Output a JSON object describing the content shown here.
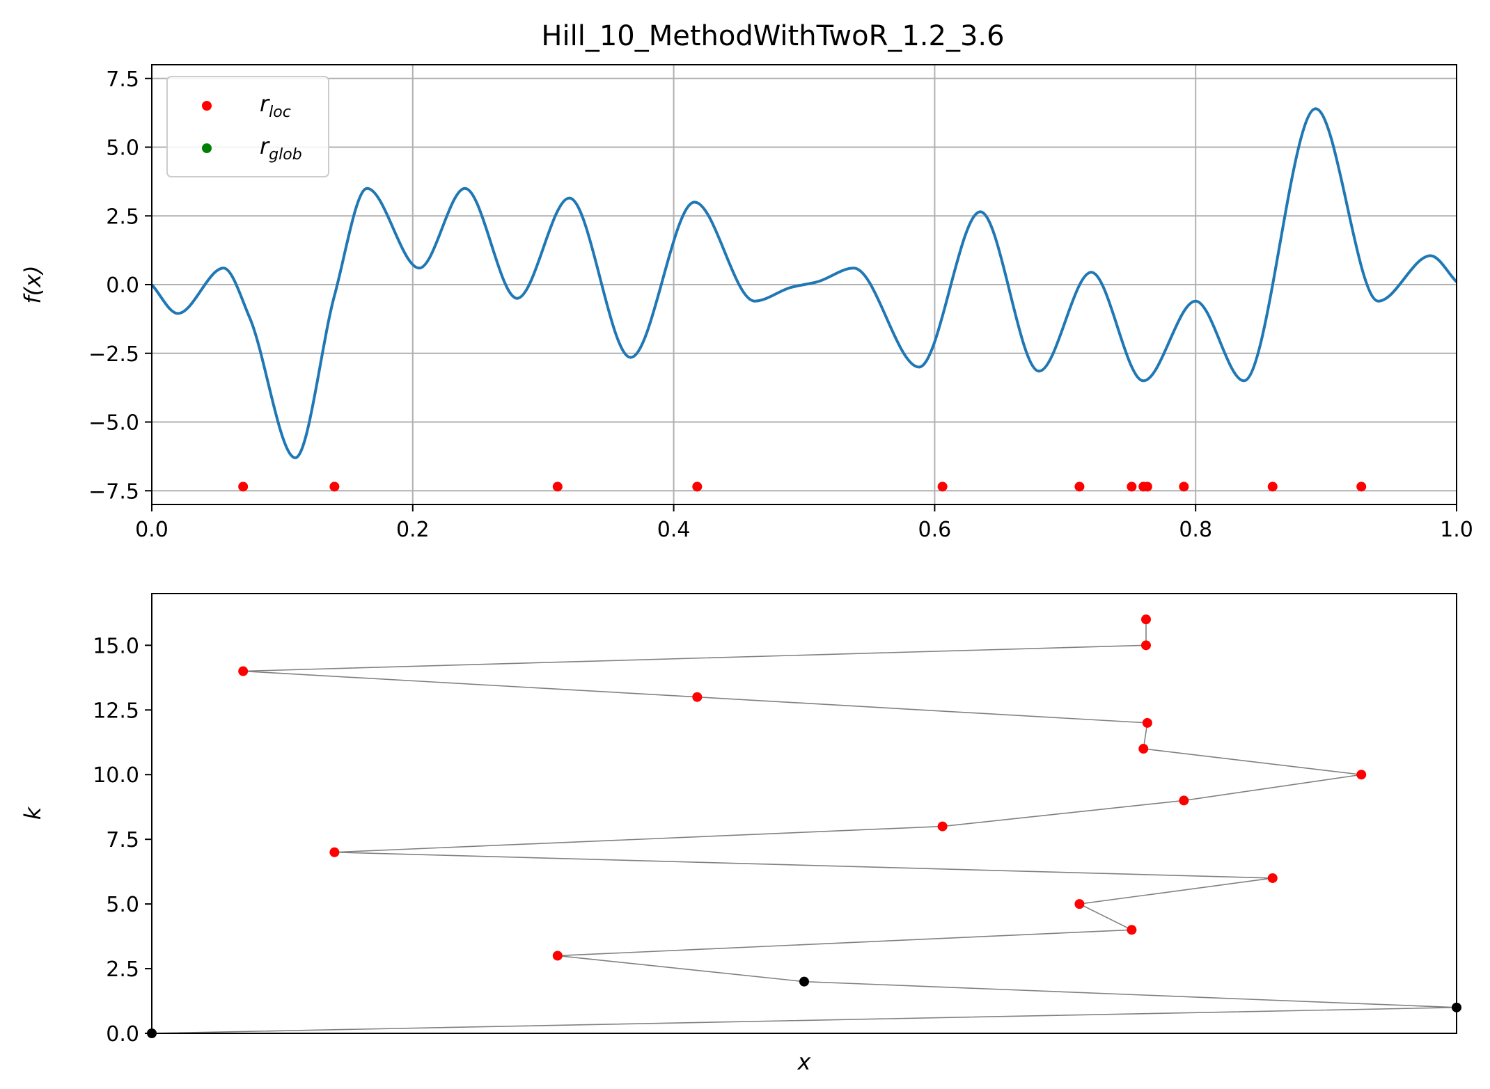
{
  "chart_data": [
    {
      "type": "line",
      "title": "Hill_10_MethodWithTwoR_1.2_3.6",
      "xlabel": "",
      "ylabel": "f(x)",
      "xlim": [
        0,
        1
      ],
      "ylim": [
        -8,
        8
      ],
      "grid": true,
      "xticks": [
        0.0,
        0.2,
        0.4,
        0.6,
        0.8,
        1.0
      ],
      "xtick_labels": [
        "0.0",
        "0.2",
        "0.4",
        "0.6",
        "0.8",
        "1.0"
      ],
      "yticks": [
        -7.5,
        -5.0,
        -2.5,
        0.0,
        2.5,
        5.0,
        7.5
      ],
      "ytick_labels": [
        "−7.5",
        "−5.0",
        "−2.5",
        "0.0",
        "2.5",
        "5.0",
        "7.5"
      ],
      "curve_color": "#1f77b4",
      "curve": {
        "x": [
          0,
          0.02,
          0.055,
          0.075,
          0.11,
          0.14,
          0.165,
          0.205,
          0.24,
          0.28,
          0.32,
          0.367,
          0.416,
          0.462,
          0.49,
          0.51,
          0.538,
          0.588,
          0.635,
          0.68,
          0.72,
          0.76,
          0.8,
          0.837,
          0.892,
          0.94,
          0.98,
          1.0
        ],
        "y": [
          0.0,
          -1.05,
          0.6,
          -1.2,
          -6.3,
          -0.4,
          3.5,
          0.6,
          3.5,
          -0.5,
          3.15,
          -2.65,
          3.0,
          -0.6,
          -0.1,
          0.1,
          0.6,
          -3.0,
          2.65,
          -3.15,
          0.45,
          -3.5,
          -0.6,
          -3.5,
          6.4,
          -0.6,
          1.05,
          0.1
        ]
      },
      "legend": {
        "placement": "upper-left",
        "entries": [
          {
            "base": "r",
            "sub": "loc",
            "color": "#ff0000"
          },
          {
            "base": "r",
            "sub": "glob",
            "color": "#008000"
          }
        ]
      },
      "r_loc": {
        "color": "#ff0000",
        "y": -7.35,
        "x": [
          0.07,
          0.14,
          0.311,
          0.418,
          0.606,
          0.711,
          0.751,
          0.76,
          0.763,
          0.791,
          0.859,
          0.927
        ]
      }
    },
    {
      "type": "scatter",
      "title": "",
      "xlabel": "x",
      "ylabel": "k",
      "xlim": [
        0,
        1
      ],
      "ylim": [
        0,
        17
      ],
      "grid": false,
      "yticks": [
        0.0,
        2.5,
        5.0,
        7.5,
        10.0,
        12.5,
        15.0
      ],
      "ytick_labels": [
        "0.0",
        "2.5",
        "5.0",
        "7.5",
        "10.0",
        "12.5",
        "15.0"
      ],
      "line_color": "#808080",
      "points": [
        {
          "x": 0.0,
          "k": 0,
          "color": "#000000"
        },
        {
          "x": 1.0,
          "k": 1,
          "color": "#000000"
        },
        {
          "x": 0.5,
          "k": 2,
          "color": "#000000"
        },
        {
          "x": 0.311,
          "k": 3,
          "color": "#ff0000"
        },
        {
          "x": 0.751,
          "k": 4,
          "color": "#ff0000"
        },
        {
          "x": 0.711,
          "k": 5,
          "color": "#ff0000"
        },
        {
          "x": 0.859,
          "k": 6,
          "color": "#ff0000"
        },
        {
          "x": 0.14,
          "k": 7,
          "color": "#ff0000"
        },
        {
          "x": 0.606,
          "k": 8,
          "color": "#ff0000"
        },
        {
          "x": 0.791,
          "k": 9,
          "color": "#ff0000"
        },
        {
          "x": 0.927,
          "k": 10,
          "color": "#ff0000"
        },
        {
          "x": 0.76,
          "k": 11,
          "color": "#ff0000"
        },
        {
          "x": 0.763,
          "k": 12,
          "color": "#ff0000"
        },
        {
          "x": 0.418,
          "k": 13,
          "color": "#ff0000"
        },
        {
          "x": 0.07,
          "k": 14,
          "color": "#ff0000"
        },
        {
          "x": 0.762,
          "k": 15,
          "color": "#ff0000"
        },
        {
          "x": 0.762,
          "k": 16,
          "color": "#ff0000"
        }
      ]
    }
  ]
}
